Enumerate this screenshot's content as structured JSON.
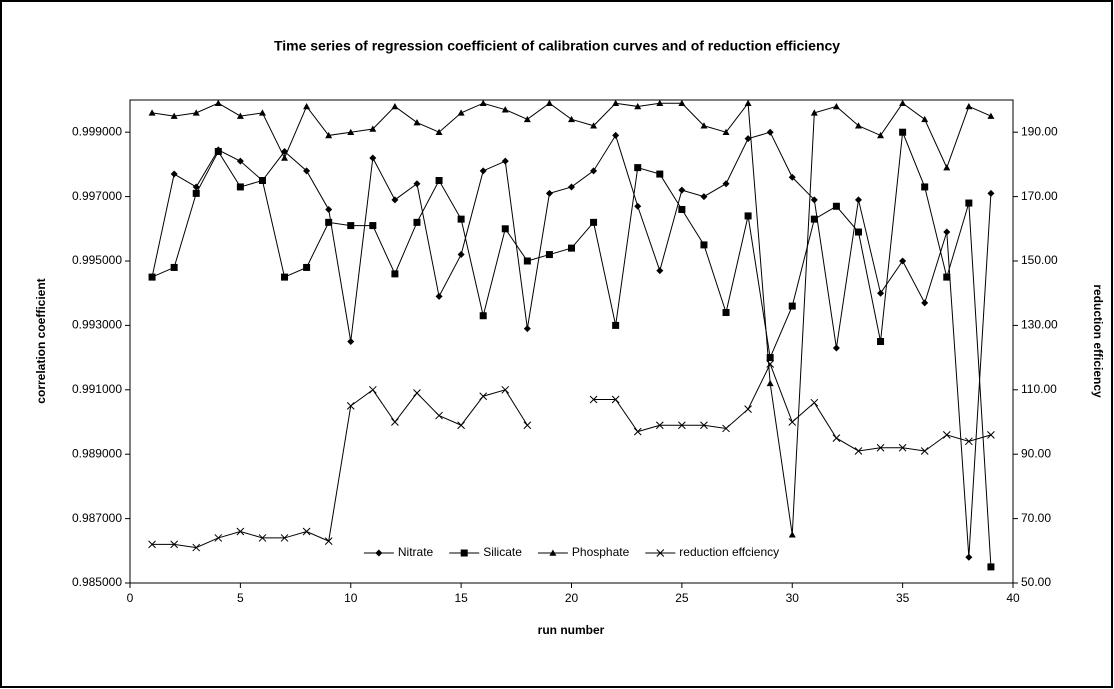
{
  "chart_data": {
    "type": "line",
    "title": "Time series of regression coefficient of calibration curves and of reduction efficiency",
    "xlabel": "run number",
    "ylabel": "correlation coefficient",
    "y2label": "reduction efficiency",
    "x": [
      1,
      2,
      3,
      4,
      5,
      6,
      7,
      8,
      9,
      10,
      11,
      12,
      13,
      14,
      15,
      16,
      17,
      18,
      19,
      20,
      21,
      22,
      23,
      24,
      25,
      26,
      27,
      28,
      29,
      30,
      31,
      32,
      33,
      34,
      35,
      36,
      37,
      38,
      39
    ],
    "xlim": [
      0,
      40
    ],
    "xticks": [
      0,
      5,
      10,
      15,
      20,
      25,
      30,
      35,
      40
    ],
    "ylim": [
      0.985,
      1.0
    ],
    "yticks": [
      {
        "value": 0.985,
        "label": "0.985000"
      },
      {
        "value": 0.987,
        "label": "0.987000"
      },
      {
        "value": 0.989,
        "label": "0.989000"
      },
      {
        "value": 0.991,
        "label": "0.991000"
      },
      {
        "value": 0.993,
        "label": "0.993000"
      },
      {
        "value": 0.995,
        "label": "0.995000"
      },
      {
        "value": 0.997,
        "label": "0.997000"
      },
      {
        "value": 0.999,
        "label": "0.999000"
      }
    ],
    "y2lim": [
      50,
      200
    ],
    "y2ticks": [
      {
        "value": 50,
        "label": "50.00"
      },
      {
        "value": 70,
        "label": "70.00"
      },
      {
        "value": 90,
        "label": "90.00"
      },
      {
        "value": 110,
        "label": "110.00"
      },
      {
        "value": 130,
        "label": "130.00"
      },
      {
        "value": 150,
        "label": "150.00"
      },
      {
        "value": 170,
        "label": "170.00"
      },
      {
        "value": 190,
        "label": "190.00"
      }
    ],
    "legend": "bottom",
    "series": [
      {
        "name": "Nitrate",
        "color": "#000000",
        "marker": "diamond",
        "values": [
          0.9945,
          0.9977,
          0.9973,
          0.99845,
          0.9981,
          0.9975,
          0.9984,
          0.9978,
          0.9966,
          0.9925,
          0.9982,
          0.9969,
          0.9974,
          0.9939,
          0.9952,
          0.9978,
          0.9981,
          0.9929,
          0.9971,
          0.9973,
          0.9978,
          0.9989,
          0.9967,
          0.9947,
          0.9972,
          0.997,
          0.9974,
          0.9988,
          0.999,
          0.9976,
          0.9969,
          0.9923,
          0.9969,
          0.994,
          0.995,
          0.9937,
          0.9959,
          0.9858,
          0.9971
        ]
      },
      {
        "name": "Silicate",
        "color": "#000000",
        "marker": "square",
        "values": [
          0.9945,
          0.9948,
          0.9971,
          0.9984,
          0.9973,
          0.9975,
          0.9945,
          0.9948,
          0.9962,
          0.9961,
          0.9961,
          0.9946,
          0.9962,
          0.9975,
          0.9963,
          0.9933,
          0.996,
          0.995,
          0.9952,
          0.9954,
          0.9962,
          0.993,
          0.9979,
          0.9977,
          0.9966,
          0.9955,
          0.9934,
          0.9964,
          0.992,
          0.9936,
          0.9963,
          0.9967,
          0.9959,
          0.9925,
          0.999,
          0.9973,
          0.9945,
          0.9968,
          0.9855
        ]
      },
      {
        "name": "Phosphate",
        "color": "#000000",
        "marker": "triangle",
        "values": [
          0.9996,
          0.9995,
          0.9996,
          0.9999,
          0.9995,
          0.9996,
          0.9982,
          0.9998,
          0.9989,
          0.999,
          0.9991,
          0.9998,
          0.9993,
          0.999,
          0.9996,
          0.9999,
          0.9997,
          0.9994,
          0.9999,
          0.9994,
          0.9992,
          0.9999,
          0.9998,
          0.9999,
          0.9999,
          0.9992,
          0.999,
          0.9999,
          0.9912,
          0.9865,
          0.9996,
          0.9998,
          0.9992,
          0.9989,
          0.9999,
          0.9994,
          0.9979,
          0.9998,
          0.9995
        ]
      },
      {
        "name": "reduction effciency",
        "color": "#000000",
        "marker": "x",
        "axis": "y2",
        "values": [
          62,
          62,
          61,
          64,
          66,
          64,
          64,
          66,
          63,
          105,
          110,
          100,
          109,
          102,
          99,
          108,
          110,
          99,
          null,
          null,
          107,
          107,
          97,
          99,
          99,
          99,
          98,
          104,
          118,
          100,
          106,
          95,
          91,
          92,
          92,
          91,
          96,
          94,
          96
        ]
      }
    ]
  }
}
